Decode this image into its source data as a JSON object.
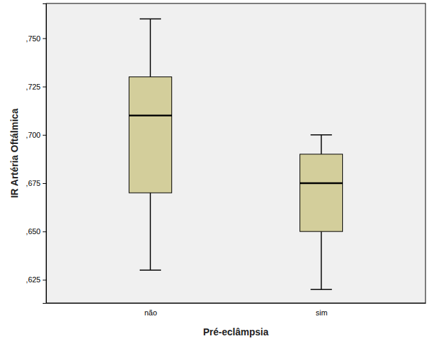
{
  "chart_data": {
    "type": "box",
    "x_label": "Pré-eclâmpsia",
    "y_label": "IR Artéria Oftálmica",
    "categories": [
      "não",
      "sim"
    ],
    "boxes": [
      {
        "min": 0.63,
        "q1": 0.67,
        "median": 0.71,
        "q3": 0.73,
        "max": 0.76
      },
      {
        "min": 0.62,
        "q1": 0.65,
        "median": 0.675,
        "q3": 0.69,
        "max": 0.7
      }
    ],
    "color": "#d3ce9b",
    "ylim": [
      0.613,
      0.768
    ],
    "yticks": [
      {
        "value": 0.625,
        "label": ",625"
      },
      {
        "value": 0.65,
        "label": ",650"
      },
      {
        "value": 0.675,
        "label": ",675"
      },
      {
        "value": 0.7,
        "label": ",700"
      },
      {
        "value": 0.725,
        "label": ",725"
      },
      {
        "value": 0.75,
        "label": ",750"
      }
    ],
    "grid": false
  }
}
